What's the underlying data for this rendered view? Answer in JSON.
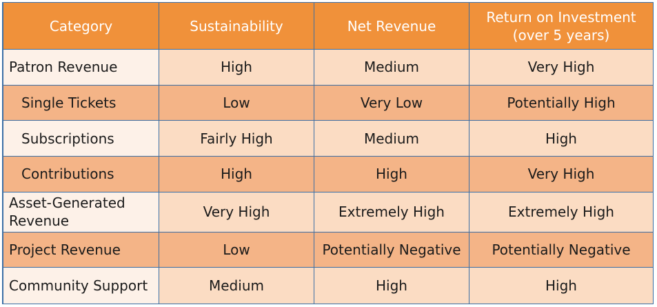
{
  "table": {
    "headers": [
      "Category",
      "Sustainability",
      "Net Revenue",
      "Return on Investment (over 5 years)"
    ],
    "header_roi_line1": "Return on Investment",
    "header_roi_line2": "(over 5 years)",
    "rows": [
      {
        "category": "Patron Revenue",
        "sustainability": "High",
        "net_revenue": "Medium",
        "roi": "Very High"
      },
      {
        "category": "Single Tickets",
        "sustainability": "Low",
        "net_revenue": "Very Low",
        "roi": "Potentially High"
      },
      {
        "category": "Subscriptions",
        "sustainability": "Fairly High",
        "net_revenue": "Medium",
        "roi": "High"
      },
      {
        "category": "Contributions",
        "sustainability": "High",
        "net_revenue": "High",
        "roi": "Very High"
      },
      {
        "category": "Asset-Generated Revenue",
        "category_line1": "Asset-Generated",
        "category_line2": "Revenue",
        "sustainability": "Very High",
        "net_revenue": "Extremely High",
        "roi": "Extremely High"
      },
      {
        "category": "Project Revenue",
        "sustainability": "Low",
        "net_revenue": "Potentially Negative",
        "roi": "Potentially Negative"
      },
      {
        "category": "Community Support",
        "sustainability": "Medium",
        "net_revenue": "High",
        "roi": "High"
      }
    ]
  },
  "colors": {
    "header_bg": "#f0913a",
    "header_text": "#ffffff",
    "row_light_category_bg": "#fdf1e8",
    "row_light_value_bg": "#fbdcc3",
    "row_dark_bg": "#f4b487",
    "grid_line": "#3a6ea5"
  }
}
